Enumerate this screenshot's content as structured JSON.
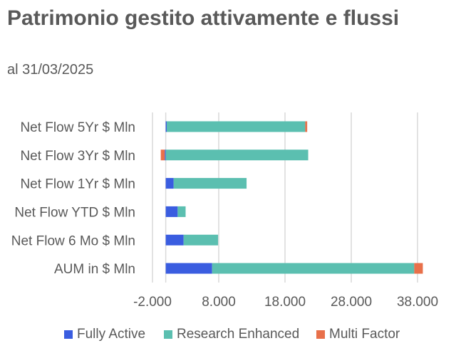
{
  "chart_data": {
    "type": "bar",
    "orientation": "horizontal",
    "stacked": true,
    "title": "Patrimonio gestito attivamente e flussi",
    "subtitle": "al 31/03/2025",
    "categories": [
      "Net Flow 5Yr $ Mln",
      "Net Flow 3Yr $ Mln",
      "Net Flow 1Yr $ Mln",
      "Net Flow YTD $ Mln",
      "Net Flow 6 Mo $ Mln",
      "AUM in $ Mln"
    ],
    "series": [
      {
        "name": "Fully Active",
        "color": "#3a5de0",
        "values": [
          150,
          -150,
          1200,
          1800,
          2700,
          7000
        ]
      },
      {
        "name": "Research Enhanced",
        "color": "#5bbfb0",
        "values": [
          20900,
          21500,
          11000,
          1200,
          5200,
          30500
        ]
      },
      {
        "name": "Multi Factor",
        "color": "#e8704a",
        "values": [
          300,
          -600,
          0,
          0,
          0,
          1300
        ]
      }
    ],
    "xlim": [
      -2000,
      38000
    ],
    "xticks": [
      -2000,
      8000,
      18000,
      28000,
      38000
    ],
    "xtick_labels": [
      "-2.000",
      "8.000",
      "18.000",
      "28.000",
      "38.000"
    ],
    "grid": true,
    "legend": "bottom"
  }
}
